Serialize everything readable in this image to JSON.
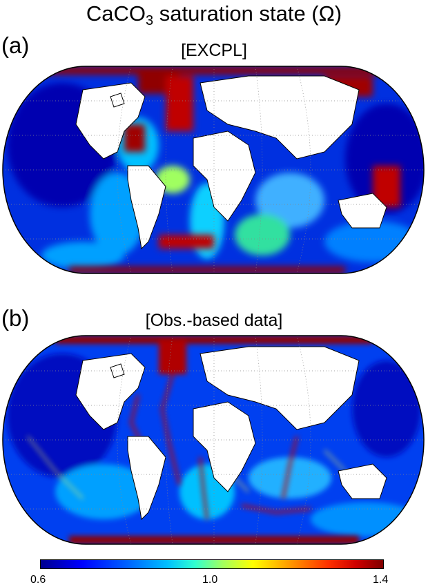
{
  "title": {
    "prefix": "CaCO",
    "subscript": "3",
    "suffix": " saturation state (Ω)"
  },
  "panels": [
    {
      "letter": "(a)",
      "label": "[EXCPL]"
    },
    {
      "letter": "(b)",
      "label": "[Obs.-based data]"
    }
  ],
  "colorbar": {
    "min": 0.6,
    "max": 1.4,
    "tick_labels": [
      "0.6",
      "1.0",
      "1.4"
    ],
    "colormap": "jet",
    "colors": [
      "#00008f",
      "#0000ff",
      "#0060ff",
      "#00c0ff",
      "#30ffd0",
      "#a0ff60",
      "#ffff00",
      "#ffa000",
      "#ff3000",
      "#d00000",
      "#800000"
    ]
  },
  "map": {
    "projection": "Robinson-like global",
    "land_color": "#ffffff",
    "graticule": "dotted"
  }
}
